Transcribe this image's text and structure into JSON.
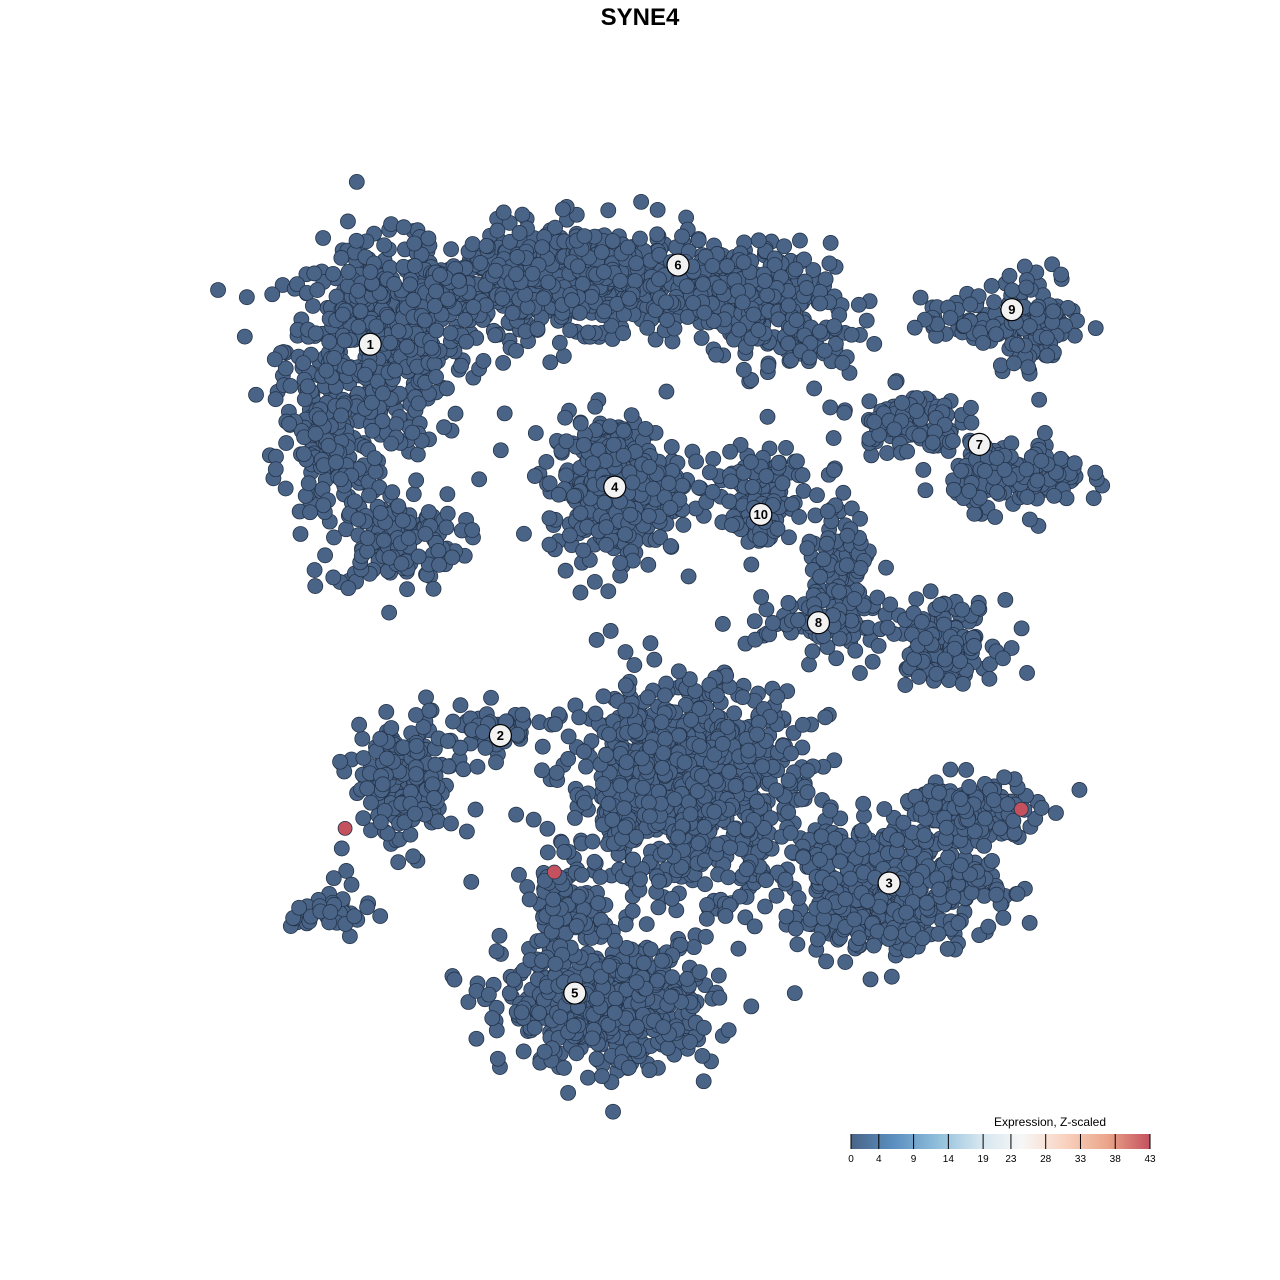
{
  "chart_data": {
    "type": "scatter",
    "title": "SYNE4",
    "xlabel": "",
    "ylabel": "",
    "xlim": [
      -50,
      50
    ],
    "ylim": [
      -50,
      50
    ],
    "grid": false,
    "axes_visible": false,
    "point_color_low": "#4a6488",
    "point_color_high": "#c4515e",
    "clusters": [
      {
        "label": "1",
        "center": [
          -31.7,
          32.5
        ],
        "blobs": [
          [
            -31,
            32,
            7,
            8,
            520
          ],
          [
            -36,
            20,
            4,
            5,
            120
          ],
          [
            -29,
            11,
            5,
            4,
            140
          ],
          [
            -22,
            38,
            7,
            4,
            200
          ]
        ]
      },
      {
        "label": "6",
        "center": [
          1.4,
          41.2
        ],
        "blobs": [
          [
            -8,
            40,
            9,
            4,
            480
          ],
          [
            8,
            38,
            7,
            4,
            260
          ],
          [
            15,
            33,
            5,
            3,
            80
          ]
        ]
      },
      {
        "label": "4",
        "center": [
          -5.4,
          16.8
        ],
        "blobs": [
          [
            -5.4,
            16.8,
            5,
            5.5,
            420
          ]
        ]
      },
      {
        "label": "10",
        "center": [
          10.3,
          13.8
        ],
        "blobs": [
          [
            10,
            17,
            4,
            3,
            90
          ],
          [
            10,
            13,
            2,
            3,
            40
          ]
        ]
      },
      {
        "label": "9",
        "center": [
          37.3,
          36.3
        ],
        "blobs": [
          [
            33,
            35,
            4,
            2,
            60
          ],
          [
            40,
            35,
            3.5,
            4,
            110
          ]
        ]
      },
      {
        "label": "7",
        "center": [
          33.8,
          21.5
        ],
        "blobs": [
          [
            26,
            24,
            4,
            2.5,
            110
          ],
          [
            38,
            18,
            5,
            2.5,
            180
          ]
        ]
      },
      {
        "label": "8",
        "center": [
          16.5,
          1.9
        ],
        "blobs": [
          [
            19,
            6,
            3,
            7,
            120
          ],
          [
            30,
            0,
            4,
            3,
            140
          ],
          [
            16,
            2,
            5,
            2,
            60
          ]
        ]
      },
      {
        "label": "2",
        "center": [
          -17.7,
          -10.5
        ],
        "blobs": [
          [
            -28,
            -16,
            4,
            5,
            200
          ],
          [
            -19,
            -10,
            4,
            2,
            60
          ],
          [
            -36,
            -30,
            3,
            2,
            40
          ]
        ]
      },
      {
        "label": "5",
        "center": [
          -9.7,
          -38.8
        ],
        "blobs": [
          [
            2,
            -16,
            9,
            8,
            900
          ],
          [
            -6,
            -40,
            8,
            5,
            560
          ],
          [
            -11,
            -30,
            3,
            4,
            80
          ]
        ]
      },
      {
        "label": "3",
        "center": [
          24.1,
          -26.7
        ],
        "blobs": [
          [
            24,
            -27,
            8,
            5,
            500
          ],
          [
            33,
            -19,
            5,
            3,
            160
          ]
        ]
      }
    ],
    "highlighted_points": [
      {
        "x": -34.4,
        "y": -20.7,
        "value": 43
      },
      {
        "x": -11.9,
        "y": -25.5,
        "value": 43
      },
      {
        "x": 38.3,
        "y": -18.6,
        "value": 43
      }
    ],
    "colorbar": {
      "title": "Expression, Z-scaled",
      "range": [
        0,
        43
      ],
      "ticks": [
        "0",
        "4",
        "9",
        "14",
        "19",
        "23",
        "28",
        "33",
        "38",
        "43"
      ],
      "colors": [
        "#4a6488",
        "#5b8fc0",
        "#8ebdda",
        "#d3e5ef",
        "#f7f7f7",
        "#f9d3c0",
        "#eaa58a",
        "#c4515e"
      ]
    }
  }
}
